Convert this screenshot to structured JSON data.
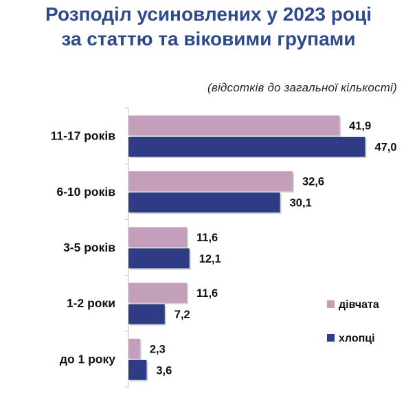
{
  "title_line1": "Розподіл усиновлених у 2023 році",
  "title_line2": "за статтю та віковими групами",
  "subtitle": "(відсотків до загальної кількості)",
  "colors": {
    "title": "#2e4a8e",
    "girls": "#c39fbb",
    "boys": "#2f3b85",
    "axis": "#bfbfbf"
  },
  "chart_data": {
    "type": "bar",
    "orientation": "horizontal",
    "categories": [
      "11-17 років",
      "6-10 років",
      "3-5 років",
      "1-2 роки",
      "до 1 року"
    ],
    "category_labels": [
      "11-17 років",
      "6-10 років",
      "3-5 років",
      "1-2 роки",
      "до 1 року"
    ],
    "series": [
      {
        "name": "дівчата",
        "values": [
          41.9,
          32.6,
          11.6,
          11.6,
          2.3
        ],
        "labels": [
          "41,9",
          "32,6",
          "11,6",
          "11,6",
          "2,3"
        ],
        "color": "#c39fbb"
      },
      {
        "name": "хлопці",
        "values": [
          47.0,
          30.1,
          12.1,
          7.2,
          3.6
        ],
        "labels": [
          "47,0",
          "30,1",
          "12,1",
          "7,2",
          "3,6"
        ],
        "color": "#2f3b85"
      }
    ],
    "legend_position": "bottom-right",
    "grid": false
  }
}
